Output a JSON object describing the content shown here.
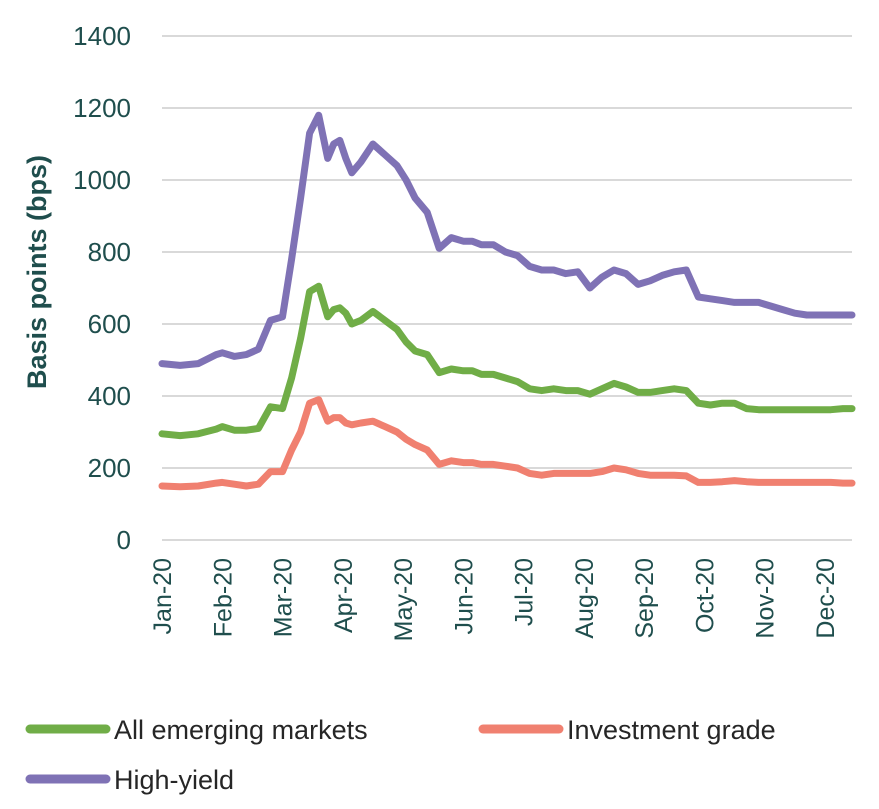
{
  "chart_data": {
    "type": "line",
    "ylabel": "Basis points (bps)",
    "xlabel": "",
    "ylim": [
      0,
      1400
    ],
    "yticks": [
      0,
      200,
      400,
      600,
      800,
      1000,
      1200,
      1400
    ],
    "grid": true,
    "legend_position": "bottom",
    "x_range": [
      0,
      11.45
    ],
    "categories": [
      "Jan-20",
      "Feb-20",
      "Mar-20",
      "Apr-20",
      "May-20",
      "Jun-20",
      "Jul-20",
      "Aug-20",
      "Sep-20",
      "Oct-20",
      "Nov-20",
      "Dec-20"
    ],
    "series": [
      {
        "name": "All emerging markets",
        "color": "#70ad47",
        "x": [
          0,
          0.3,
          0.6,
          0.9,
          1.0,
          1.2,
          1.4,
          1.6,
          1.8,
          2.0,
          2.15,
          2.3,
          2.45,
          2.6,
          2.75,
          2.85,
          2.95,
          3.05,
          3.15,
          3.3,
          3.5,
          3.7,
          3.9,
          4.05,
          4.2,
          4.4,
          4.6,
          4.8,
          5.0,
          5.15,
          5.3,
          5.5,
          5.7,
          5.9,
          6.1,
          6.3,
          6.5,
          6.7,
          6.9,
          7.1,
          7.3,
          7.5,
          7.7,
          7.9,
          8.1,
          8.3,
          8.5,
          8.7,
          8.9,
          9.1,
          9.3,
          9.5,
          9.7,
          9.9,
          10.1,
          10.3,
          10.5,
          10.7,
          10.9,
          11.1,
          11.3,
          11.45
        ],
        "values": [
          295,
          290,
          295,
          308,
          315,
          305,
          305,
          310,
          370,
          365,
          450,
          560,
          690,
          705,
          620,
          640,
          645,
          630,
          600,
          610,
          635,
          610,
          585,
          550,
          525,
          515,
          465,
          475,
          470,
          470,
          460,
          460,
          450,
          440,
          420,
          415,
          420,
          415,
          415,
          405,
          420,
          435,
          425,
          410,
          410,
          415,
          420,
          415,
          380,
          375,
          380,
          380,
          365,
          362,
          362,
          362,
          362,
          362,
          362,
          362,
          365,
          365
        ]
      },
      {
        "name": "Investment grade",
        "color": "#f08070",
        "x": [
          0,
          0.3,
          0.6,
          0.9,
          1.0,
          1.2,
          1.4,
          1.6,
          1.8,
          2.0,
          2.15,
          2.3,
          2.45,
          2.6,
          2.75,
          2.85,
          2.95,
          3.05,
          3.15,
          3.3,
          3.5,
          3.7,
          3.9,
          4.05,
          4.2,
          4.4,
          4.6,
          4.8,
          5.0,
          5.15,
          5.3,
          5.5,
          5.7,
          5.9,
          6.1,
          6.3,
          6.5,
          6.7,
          6.9,
          7.1,
          7.3,
          7.5,
          7.7,
          7.9,
          8.1,
          8.3,
          8.5,
          8.7,
          8.9,
          9.1,
          9.3,
          9.5,
          9.7,
          9.9,
          10.1,
          10.3,
          10.5,
          10.7,
          10.9,
          11.1,
          11.3,
          11.45
        ],
        "values": [
          150,
          148,
          150,
          158,
          160,
          155,
          150,
          155,
          190,
          190,
          250,
          300,
          380,
          390,
          330,
          340,
          340,
          325,
          320,
          325,
          330,
          315,
          300,
          280,
          265,
          250,
          210,
          220,
          215,
          215,
          210,
          210,
          205,
          200,
          185,
          180,
          185,
          185,
          185,
          185,
          190,
          200,
          195,
          185,
          180,
          180,
          180,
          178,
          160,
          160,
          162,
          165,
          162,
          160,
          160,
          160,
          160,
          160,
          160,
          160,
          158,
          158
        ]
      },
      {
        "name": "High-yield",
        "color": "#7f72b5",
        "x": [
          0,
          0.3,
          0.6,
          0.9,
          1.0,
          1.2,
          1.4,
          1.6,
          1.8,
          2.0,
          2.15,
          2.3,
          2.45,
          2.6,
          2.75,
          2.85,
          2.95,
          3.05,
          3.15,
          3.3,
          3.5,
          3.7,
          3.9,
          4.05,
          4.2,
          4.4,
          4.6,
          4.8,
          5.0,
          5.15,
          5.3,
          5.5,
          5.7,
          5.9,
          6.1,
          6.3,
          6.5,
          6.7,
          6.9,
          7.1,
          7.3,
          7.5,
          7.7,
          7.9,
          8.1,
          8.3,
          8.5,
          8.7,
          8.9,
          9.1,
          9.3,
          9.5,
          9.7,
          9.9,
          10.1,
          10.3,
          10.5,
          10.7,
          10.9,
          11.1,
          11.3,
          11.45
        ],
        "values": [
          490,
          485,
          490,
          515,
          520,
          510,
          515,
          530,
          610,
          620,
          780,
          950,
          1130,
          1180,
          1060,
          1100,
          1110,
          1060,
          1020,
          1050,
          1100,
          1070,
          1040,
          1000,
          950,
          910,
          810,
          840,
          830,
          830,
          820,
          820,
          800,
          790,
          760,
          750,
          750,
          740,
          745,
          700,
          730,
          750,
          740,
          710,
          720,
          735,
          745,
          750,
          675,
          670,
          665,
          660,
          660,
          660,
          650,
          640,
          630,
          625,
          625,
          625,
          625,
          625
        ]
      }
    ]
  }
}
